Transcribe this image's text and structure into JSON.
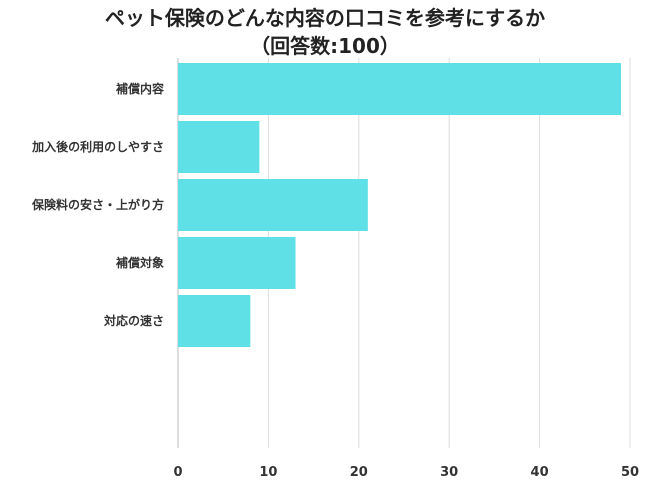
{
  "chart_data": {
    "type": "bar",
    "orientation": "horizontal",
    "title": "ペット保険のどんな内容の口コミを参考にするか",
    "subtitle": "（回答数:100）",
    "categories": [
      "補償内容",
      "加入後の利用のしやすさ",
      "保険料の安さ・上がり方",
      "補償対象",
      "対応の速さ"
    ],
    "values": [
      49,
      9,
      21,
      13,
      8
    ],
    "x_ticks": [
      "0",
      "10",
      "20",
      "30",
      "40",
      "50"
    ],
    "xlim": [
      0,
      50
    ],
    "grid": true,
    "bar_color": "#5ee0e6",
    "grid_color": "#dddddd"
  }
}
